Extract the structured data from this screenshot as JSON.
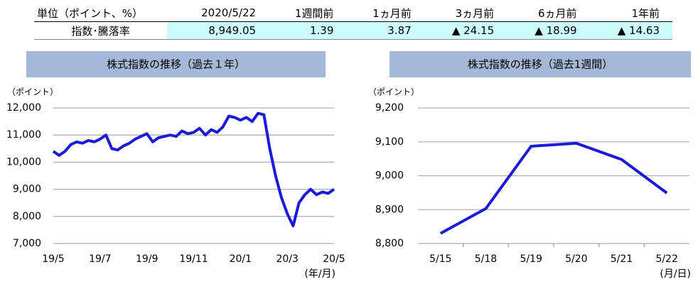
{
  "table": {
    "header": [
      "単位（ポイント、%）",
      "2020/5/22",
      "1週間前",
      "1ヵ月前",
      "3ヵ月前",
      "6ヵ月前",
      "1年前"
    ],
    "rows": [
      [
        "指数･騰落率",
        "8,949.05",
        "1.39",
        "3.87",
        "▲ 24.15",
        "▲ 18.99",
        "▲ 14.63"
      ]
    ]
  },
  "chart_data": [
    {
      "type": "line",
      "title": "株式指数の推移（過去１年）",
      "y_label": "（ポイント）",
      "x_label": "(年/月)",
      "color": "#1c1cd8",
      "grid": true,
      "categories": [
        "19/5",
        null,
        null,
        null,
        null,
        null,
        null,
        null,
        "19/7",
        null,
        null,
        null,
        null,
        null,
        null,
        null,
        "19/9",
        null,
        null,
        null,
        null,
        null,
        null,
        null,
        "19/11",
        null,
        null,
        null,
        null,
        null,
        null,
        null,
        "20/1",
        null,
        null,
        null,
        null,
        null,
        null,
        null,
        "20/3",
        null,
        null,
        null,
        null,
        null,
        null,
        null,
        "20/5"
      ],
      "values": [
        10400,
        10250,
        10400,
        10650,
        10750,
        10700,
        10800,
        10750,
        10850,
        11000,
        10500,
        10450,
        10600,
        10700,
        10850,
        10950,
        11050,
        10750,
        10900,
        10950,
        11000,
        10950,
        11150,
        11050,
        11100,
        11250,
        11000,
        11200,
        11100,
        11300,
        11700,
        11650,
        11550,
        11650,
        11500,
        11800,
        11750,
        10500,
        9500,
        8700,
        8100,
        7650,
        8500,
        8800,
        9000,
        8800,
        8900,
        8850,
        9000
      ],
      "ylim": [
        7000,
        12000
      ],
      "yticks": [
        {
          "value": 7000,
          "label": "7,000"
        },
        {
          "value": 8000,
          "label": "8,000"
        },
        {
          "value": 9000,
          "label": "9,000"
        },
        {
          "value": 10000,
          "label": "10,000"
        },
        {
          "value": 11000,
          "label": "11,000"
        },
        {
          "value": 12000,
          "label": "12,000"
        }
      ]
    },
    {
      "type": "line",
      "title": "株式指数の推移（過去1週間）",
      "y_label": "（ポイント）",
      "x_label": "(月/日)",
      "color": "#1c1cd8",
      "grid": true,
      "categories": [
        "5/15",
        "5/18",
        "5/19",
        "5/20",
        "5/21",
        "5/22"
      ],
      "values": [
        8830,
        8903,
        9087,
        9096,
        9048,
        8949
      ],
      "ylim": [
        8800,
        9200
      ],
      "yticks": [
        {
          "value": 8800,
          "label": "8,800"
        },
        {
          "value": 8900,
          "label": "8,900"
        },
        {
          "value": 9000,
          "label": "9,000"
        },
        {
          "value": 9100,
          "label": "9,100"
        },
        {
          "value": 9200,
          "label": "9,200"
        }
      ]
    }
  ]
}
